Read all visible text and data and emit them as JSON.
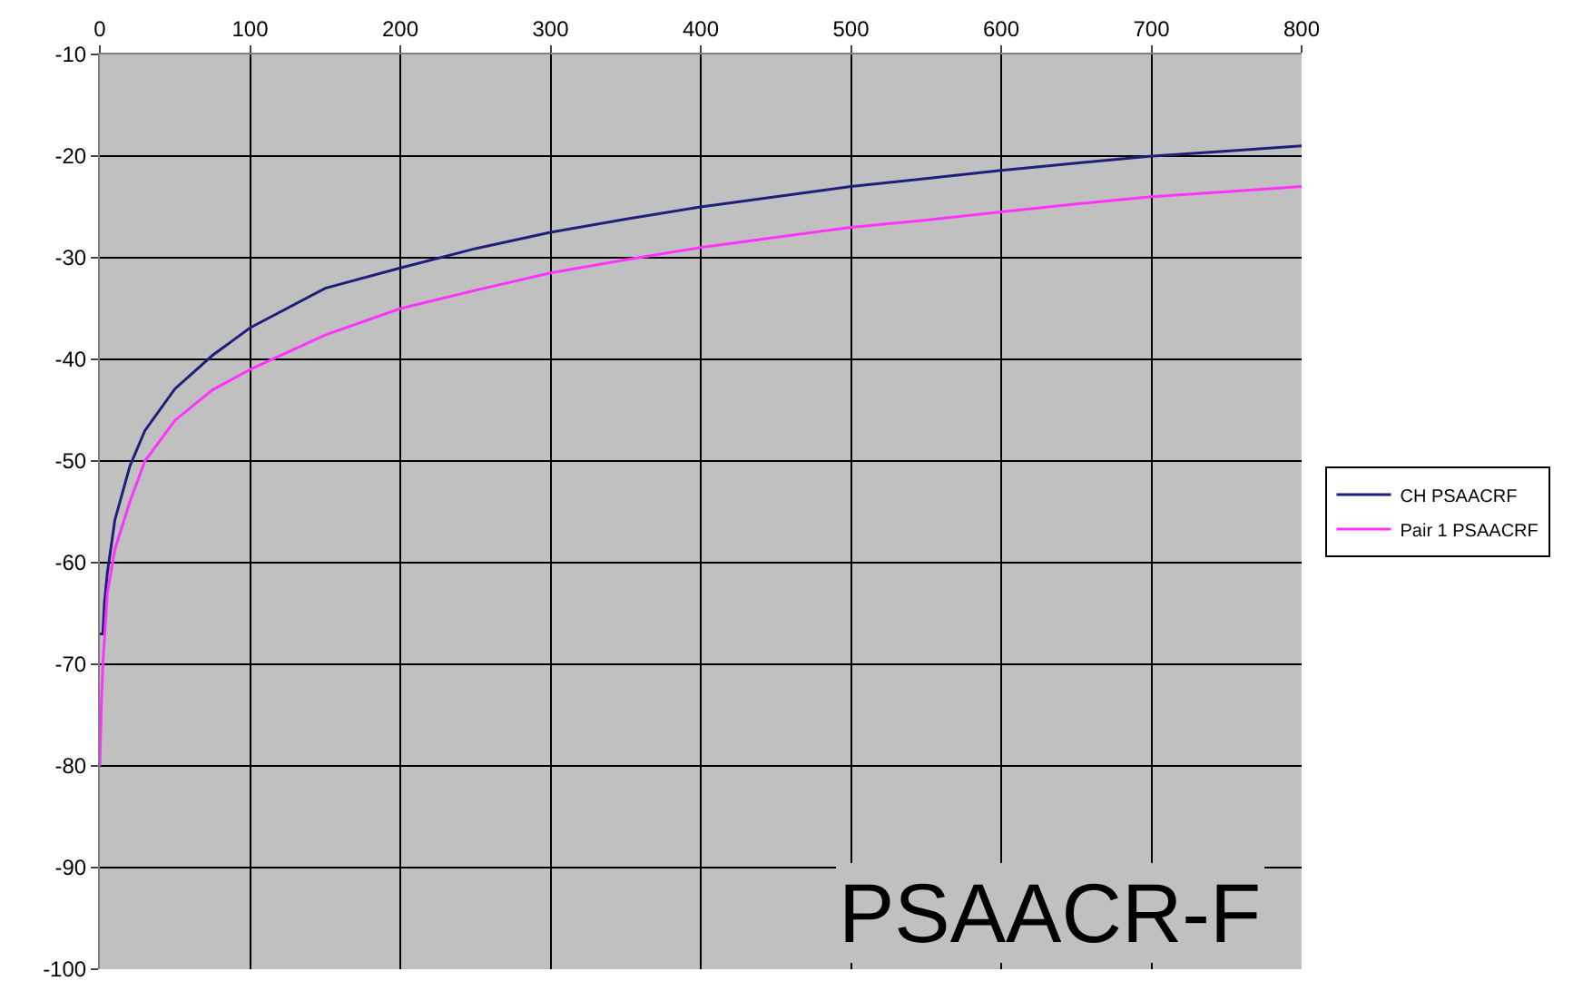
{
  "chart_data": {
    "type": "line",
    "annotations": [
      "PSAACR-F"
    ],
    "series": [
      {
        "name": "CH PSAACRF",
        "color": "#1f1f7a",
        "x": [
          0,
          2,
          3,
          5,
          10,
          20,
          30,
          50,
          75,
          100,
          150,
          200,
          250,
          300,
          350,
          400,
          450,
          500,
          550,
          600,
          650,
          700,
          750,
          800
        ],
        "values": [
          -67,
          -67,
          -64,
          -61,
          -55.8,
          -50.5,
          -47,
          -42.9,
          -39.6,
          -36.9,
          -33,
          -31,
          -29.1,
          -27.5,
          -26.2,
          -25,
          -24,
          -23,
          -22.2,
          -21.4,
          -20.7,
          -20,
          -19.5,
          -19
        ]
      },
      {
        "name": "Pair 1 PSAACRF",
        "color": "#ff33ff",
        "x": [
          0,
          1,
          2,
          5,
          10,
          20,
          30,
          50,
          75,
          100,
          150,
          200,
          250,
          300,
          350,
          400,
          450,
          500,
          550,
          600,
          650,
          700,
          750,
          800
        ],
        "values": [
          -80,
          -74,
          -70,
          -63,
          -58.7,
          -54,
          -50,
          -46,
          -43,
          -41,
          -37.6,
          -35,
          -33.2,
          -31.5,
          -30.2,
          -29,
          -28,
          -27,
          -26.3,
          -25.5,
          -24.7,
          -24,
          -23.5,
          -23
        ]
      }
    ],
    "xlim": [
      0,
      800
    ],
    "xticks": [
      0,
      100,
      200,
      300,
      400,
      500,
      600,
      700,
      800
    ],
    "ylim": [
      -100,
      -10
    ],
    "yticks": [
      -100,
      -90,
      -80,
      -70,
      -60,
      -50,
      -40,
      -30,
      -20,
      -10
    ],
    "grid": true,
    "legend": "right",
    "marker": "none",
    "line_style": "solid"
  }
}
